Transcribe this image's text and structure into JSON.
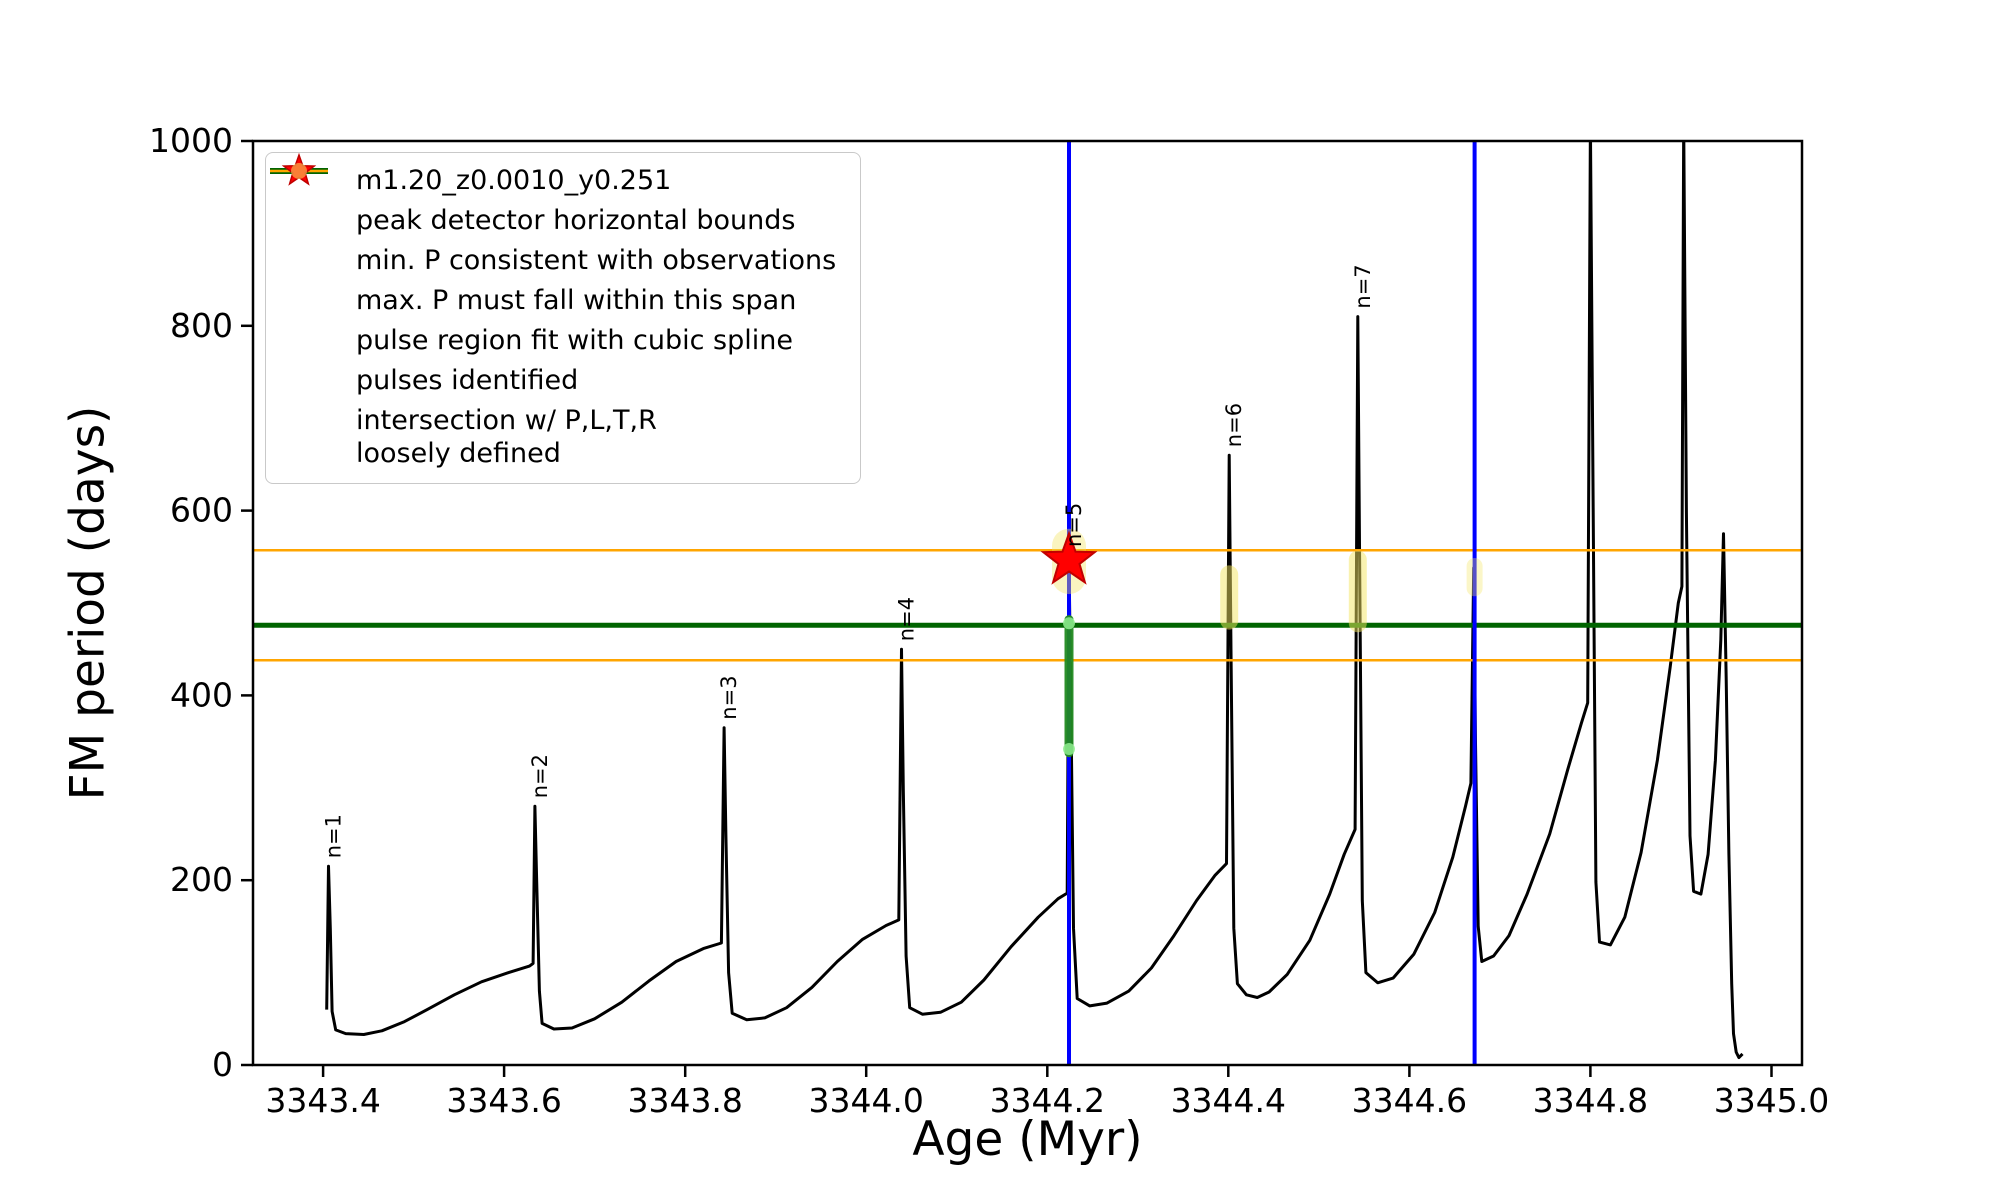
{
  "chart_data": {
    "type": "line",
    "title": "",
    "xlabel": "Age (Myr)",
    "ylabel": "FM period (days)",
    "xlim": [
      3343.3226,
      3345.0337
    ],
    "ylim": [
      0,
      1000
    ],
    "grid": false,
    "xticks": [
      {
        "v": 3343.4,
        "label": "3343.4"
      },
      {
        "v": 3343.6,
        "label": "3343.6"
      },
      {
        "v": 3343.8,
        "label": "3343.8"
      },
      {
        "v": 3344.0,
        "label": "3344.0"
      },
      {
        "v": 3344.2,
        "label": "3344.2"
      },
      {
        "v": 3344.4,
        "label": "3344.4"
      },
      {
        "v": 3344.6,
        "label": "3344.6"
      },
      {
        "v": 3344.8,
        "label": "3344.8"
      },
      {
        "v": 3345.0,
        "label": "3345.0"
      }
    ],
    "yticks": [
      {
        "v": 0,
        "label": "0"
      },
      {
        "v": 200,
        "label": "200"
      },
      {
        "v": 400,
        "label": "400"
      },
      {
        "v": 600,
        "label": "600"
      },
      {
        "v": 800,
        "label": "800"
      },
      {
        "v": 1000,
        "label": "1000"
      }
    ],
    "series": [
      {
        "name": "m1.20_z0.0010_y0.251",
        "color": "#000000",
        "marker": "point",
        "points": [
          [
            3343.404,
            60
          ],
          [
            3343.406,
            215
          ],
          [
            3343.408,
            148
          ],
          [
            3343.41,
            58
          ],
          [
            3343.414,
            38
          ],
          [
            3343.425,
            34
          ],
          [
            3343.445,
            33
          ],
          [
            3343.465,
            37
          ],
          [
            3343.49,
            47
          ],
          [
            3343.515,
            60
          ],
          [
            3343.545,
            76
          ],
          [
            3343.575,
            90
          ],
          [
            3343.605,
            100
          ],
          [
            3343.628,
            107
          ],
          [
            3343.632,
            110
          ],
          [
            3343.634,
            280
          ],
          [
            3343.636,
            198
          ],
          [
            3343.639,
            80
          ],
          [
            3343.642,
            45
          ],
          [
            3343.655,
            39
          ],
          [
            3343.675,
            40
          ],
          [
            3343.7,
            50
          ],
          [
            3343.73,
            68
          ],
          [
            3343.76,
            91
          ],
          [
            3343.79,
            112
          ],
          [
            3343.82,
            126
          ],
          [
            3343.84,
            132
          ],
          [
            3343.843,
            365
          ],
          [
            3343.845,
            248
          ],
          [
            3343.848,
            100
          ],
          [
            3343.852,
            56
          ],
          [
            3343.868,
            49
          ],
          [
            3343.888,
            51
          ],
          [
            3343.912,
            62
          ],
          [
            3343.94,
            84
          ],
          [
            3343.968,
            112
          ],
          [
            3343.996,
            136
          ],
          [
            3344.022,
            151
          ],
          [
            3344.036,
            157
          ],
          [
            3344.039,
            450
          ],
          [
            3344.041,
            298
          ],
          [
            3344.044,
            118
          ],
          [
            3344.048,
            62
          ],
          [
            3344.062,
            55
          ],
          [
            3344.082,
            57
          ],
          [
            3344.105,
            68
          ],
          [
            3344.13,
            92
          ],
          [
            3344.16,
            128
          ],
          [
            3344.19,
            160
          ],
          [
            3344.212,
            180
          ],
          [
            3344.222,
            186
          ],
          [
            3344.224,
            546
          ],
          [
            3344.226,
            398
          ],
          [
            3344.229,
            148
          ],
          [
            3344.233,
            72
          ],
          [
            3344.247,
            64
          ],
          [
            3344.266,
            67
          ],
          [
            3344.29,
            80
          ],
          [
            3344.315,
            105
          ],
          [
            3344.34,
            140
          ],
          [
            3344.365,
            178
          ],
          [
            3344.385,
            205
          ],
          [
            3344.398,
            218
          ],
          [
            3344.401,
            660
          ],
          [
            3344.403,
            448
          ],
          [
            3344.406,
            148
          ],
          [
            3344.41,
            88
          ],
          [
            3344.42,
            76
          ],
          [
            3344.432,
            73
          ],
          [
            3344.445,
            79
          ],
          [
            3344.465,
            98
          ],
          [
            3344.49,
            135
          ],
          [
            3344.512,
            185
          ],
          [
            3344.528,
            228
          ],
          [
            3344.54,
            255
          ],
          [
            3344.543,
            810
          ],
          [
            3344.545,
            548
          ],
          [
            3344.548,
            178
          ],
          [
            3344.552,
            100
          ],
          [
            3344.565,
            89
          ],
          [
            3344.582,
            94
          ],
          [
            3344.605,
            120
          ],
          [
            3344.628,
            165
          ],
          [
            3344.648,
            225
          ],
          [
            3344.662,
            280
          ],
          [
            3344.668,
            305
          ],
          [
            3344.671,
            538
          ],
          [
            3344.673,
            348
          ],
          [
            3344.676,
            150
          ],
          [
            3344.68,
            112
          ],
          [
            3344.693,
            118
          ],
          [
            3344.71,
            140
          ],
          [
            3344.73,
            185
          ],
          [
            3344.755,
            250
          ],
          [
            3344.775,
            320
          ],
          [
            3344.79,
            370
          ],
          [
            3344.797,
            392
          ],
          [
            3344.8,
            1020
          ],
          [
            3344.803,
            598
          ],
          [
            3344.806,
            198
          ],
          [
            3344.81,
            133
          ],
          [
            3344.822,
            130
          ],
          [
            3344.838,
            160
          ],
          [
            3344.856,
            230
          ],
          [
            3344.874,
            330
          ],
          [
            3344.888,
            430
          ],
          [
            3344.897,
            500
          ],
          [
            3344.901,
            518
          ],
          [
            3344.903,
            1020
          ],
          [
            3344.906,
            598
          ],
          [
            3344.91,
            248
          ],
          [
            3344.914,
            188
          ],
          [
            3344.922,
            185
          ],
          [
            3344.93,
            228
          ],
          [
            3344.938,
            330
          ],
          [
            3344.944,
            460
          ],
          [
            3344.947,
            575
          ],
          [
            3344.95,
            418
          ],
          [
            3344.953,
            228
          ],
          [
            3344.956,
            88
          ],
          [
            3344.958,
            34
          ],
          [
            3344.961,
            14
          ],
          [
            3344.964,
            8
          ],
          [
            3344.968,
            12
          ]
        ]
      }
    ],
    "vlines": {
      "label": "peak detector horizontal bounds",
      "color": "#0000ff",
      "width": 4,
      "x": [
        3344.224,
        3344.672
      ]
    },
    "hlines": [
      {
        "label": "min. P consistent with observations",
        "color": "#006400",
        "width": 5,
        "y": [
          476
        ]
      },
      {
        "label": "max. P must fall within this span",
        "color": "#ffa500",
        "width": 2.5,
        "y": [
          557,
          438
        ]
      }
    ],
    "pulse_region": {
      "label": "pulse region fit with cubic spline",
      "color": "#228b22",
      "color_light": "#90ee90",
      "x": 3344.224,
      "y_range": [
        338,
        482
      ]
    },
    "pulses": {
      "label": "pulses identified",
      "color": "#ff0000",
      "points": [
        [
          3344.224,
          546
        ]
      ]
    },
    "intersections": {
      "label": "intersection w/ P,L,T,R\nloosely defined",
      "color": "#f5e663",
      "blobs": [
        {
          "x": 3344.224,
          "y_range": [
            528,
            562
          ],
          "w": 34,
          "opacity": 0.4
        },
        {
          "x": 3344.401,
          "y_range": [
            481,
            531
          ],
          "w": 18,
          "opacity": 0.5
        },
        {
          "x": 3344.543,
          "y_range": [
            478,
            547
          ],
          "w": 18,
          "opacity": 0.5
        },
        {
          "x": 3344.672,
          "y_range": [
            516,
            540
          ],
          "w": 16,
          "opacity": 0.35
        }
      ]
    },
    "peak_labels": [
      {
        "label": "n=1",
        "x": 3343.406,
        "y": 215
      },
      {
        "label": "n=2",
        "x": 3343.634,
        "y": 280
      },
      {
        "label": "n=3",
        "x": 3343.843,
        "y": 365
      },
      {
        "label": "n=4",
        "x": 3344.039,
        "y": 450
      },
      {
        "label": "n=5",
        "x": 3344.224,
        "y": 552
      },
      {
        "label": "n=6",
        "x": 3344.401,
        "y": 660
      },
      {
        "label": "n=7",
        "x": 3344.543,
        "y": 810
      }
    ],
    "legend": {
      "position": "upper-left",
      "entries": [
        {
          "marker": "line-dot",
          "color": "#000000",
          "opacity": 1,
          "label": "m1.20_z0.0010_y0.251"
        },
        {
          "marker": "line-thick",
          "color": "#0000ff",
          "opacity": 1,
          "label": "peak detector horizontal bounds"
        },
        {
          "marker": "line-thick",
          "color": "#006400",
          "opacity": 1,
          "label": "min. P consistent with observations"
        },
        {
          "marker": "line-thin",
          "color": "#ffa500",
          "opacity": 1,
          "label": "max. P must fall within this span"
        },
        {
          "marker": "dot",
          "color": "#90ee90",
          "opacity": 1,
          "label": "pulse region fit with cubic spline"
        },
        {
          "marker": "star",
          "color": "#ff0000",
          "opacity": 1,
          "label": "pulses identified"
        },
        {
          "marker": "dot-faint",
          "color": "#f5e663",
          "opacity": 0.55,
          "label": "intersection w/ P,L,T,R\nloosely defined"
        }
      ]
    }
  }
}
